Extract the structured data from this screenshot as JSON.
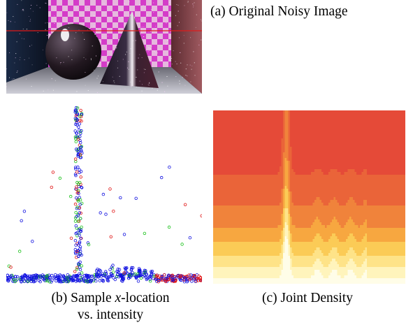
{
  "captions": {
    "a": "(a) Original Noisy Image",
    "b_prefix": "(b) Sample ",
    "b_var": "x",
    "b_suffix": "-location",
    "b_line2": "vs. intensity",
    "c": "(c) Joint Density"
  },
  "colors": {
    "checker_magenta": "#d43cc8",
    "checker_light": "#e6b8de",
    "scanline": "#e01a1a",
    "series_blue": "#1010e0",
    "series_green": "#18c018",
    "series_red": "#e01010",
    "density_dark": "#e54a38",
    "density_light": "#fffde8"
  },
  "chart_data": [
    {
      "type": "scatter",
      "title": "",
      "xlabel": "",
      "ylabel": "",
      "xlim": [
        0,
        100
      ],
      "ylim": [
        0,
        100
      ],
      "grid": false,
      "series": [
        {
          "color": "blue"
        },
        {
          "color": "green"
        },
        {
          "color": "red"
        }
      ]
    },
    {
      "type": "heatmap",
      "title": "",
      "xlabel": "",
      "ylabel": ""
    }
  ]
}
